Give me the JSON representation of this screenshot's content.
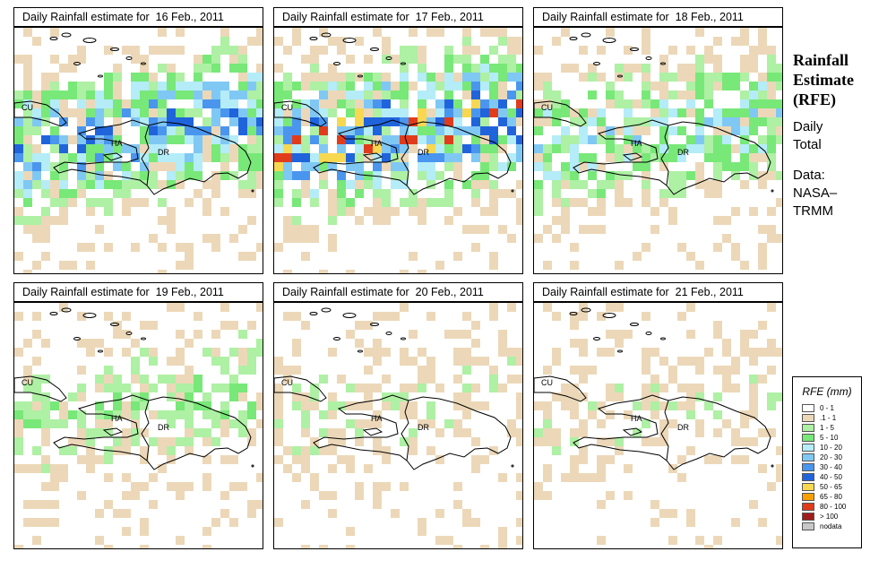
{
  "panels": [
    {
      "title": "Daily Rainfall estimate for  16 Feb., 2011",
      "intensity": 2.2
    },
    {
      "title": "Daily Rainfall estimate for  17 Feb., 2011",
      "intensity": 3.0
    },
    {
      "title": "Daily Rainfall estimate for  18 Feb., 2011",
      "intensity": 1.3
    },
    {
      "title": "Daily Rainfall estimate for  19 Feb., 2011",
      "intensity": 0.6
    },
    {
      "title": "Daily Rainfall estimate for  20 Feb., 2011",
      "intensity": 0.3
    },
    {
      "title": "Daily Rainfall estimate for  21 Feb., 2011",
      "intensity": 0.25
    }
  ],
  "map_labels": {
    "cuba": "CU",
    "haiti": "HA",
    "dominican_republic": "DR"
  },
  "sidebar": {
    "title_line1": "Rainfall",
    "title_line2": "Estimate",
    "title_line3": "(RFE)",
    "daily": "Daily",
    "total": "Total",
    "data_label": "Data:",
    "source_line1": "NASA–",
    "source_line2": "TRMM"
  },
  "legend": {
    "title": "RFE (mm)",
    "items": [
      {
        "label": "0 - 1",
        "color": "#ffffff"
      },
      {
        "label": ".1 - 1",
        "color": "#ecd8b8"
      },
      {
        "label": "1 - 5",
        "color": "#aef0a4"
      },
      {
        "label": "5 - 10",
        "color": "#78e878"
      },
      {
        "label": "10 - 20",
        "color": "#b4ecf8"
      },
      {
        "label": "20 - 30",
        "color": "#80c8f4"
      },
      {
        "label": "30 - 40",
        "color": "#4a96ee"
      },
      {
        "label": "40 - 50",
        "color": "#2064dc"
      },
      {
        "label": "50 - 65",
        "color": "#f8d850"
      },
      {
        "label": "65 - 80",
        "color": "#f8a000"
      },
      {
        "label": "80 - 100",
        "color": "#e03c1c"
      },
      {
        "label": "> 100",
        "color": "#a01c1c"
      },
      {
        "label": "nodata",
        "color": "#c8c8c8"
      }
    ]
  }
}
